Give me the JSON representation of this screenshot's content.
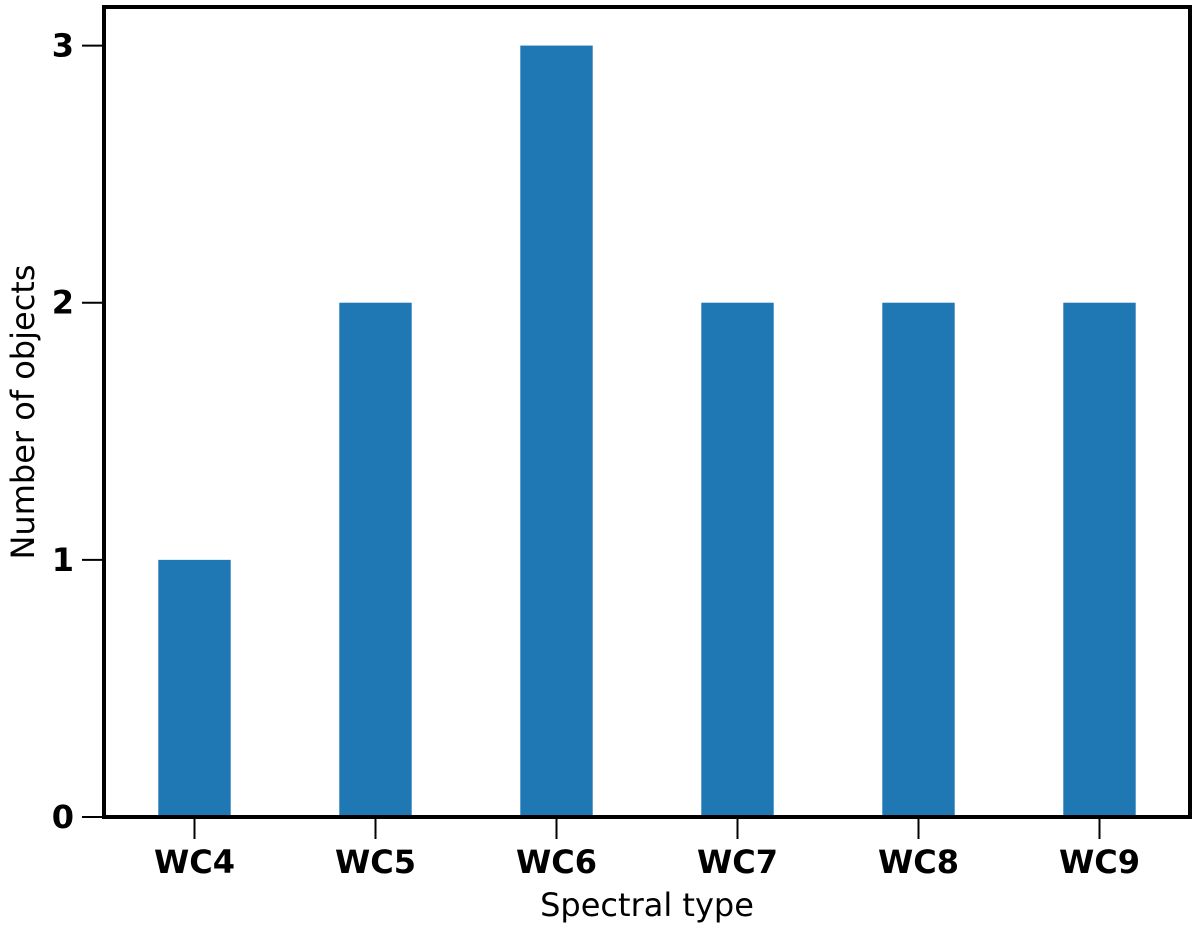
{
  "chart_data": {
    "type": "bar",
    "categories": [
      "WC4",
      "WC5",
      "WC6",
      "WC7",
      "WC8",
      "WC9"
    ],
    "values": [
      1,
      2,
      3,
      2,
      2,
      2
    ],
    "title": "",
    "xlabel": "Spectral type",
    "ylabel": "Number of objects",
    "ylim": [
      0,
      3.15
    ],
    "yticks": [
      "0",
      "1",
      "2",
      "3"
    ],
    "grid": false,
    "bar_color": "#1f77b4",
    "axis_color": "#000000"
  }
}
